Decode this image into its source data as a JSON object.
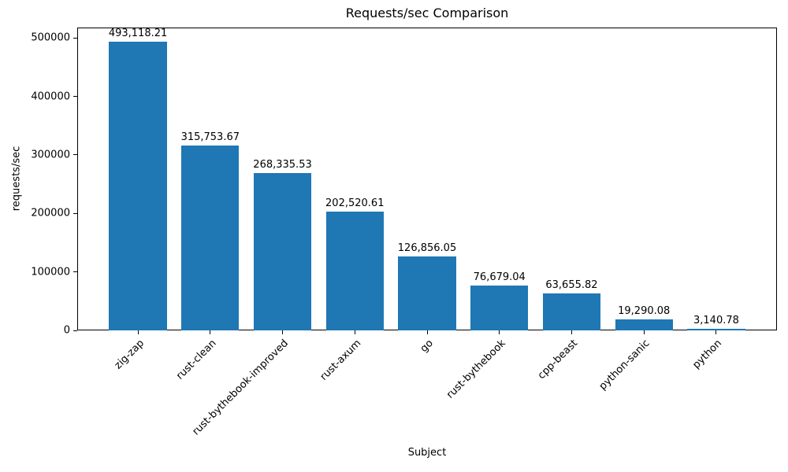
{
  "chart_data": {
    "type": "bar",
    "title": "Requests/sec Comparison",
    "xlabel": "Subject",
    "ylabel": "requests/sec",
    "categories": [
      "zig-zap",
      "rust-clean",
      "rust-bythebook-improved",
      "rust-axum",
      "go",
      "rust-bythebook",
      "cpp-beast",
      "python-sanic",
      "python"
    ],
    "values": [
      493118.21,
      315753.67,
      268335.53,
      202520.61,
      126856.05,
      76679.04,
      63655.82,
      19290.08,
      3140.78
    ],
    "value_labels": [
      "493,118.21",
      "315,753.67",
      "268,335.53",
      "202,520.61",
      "126,856.05",
      "76,679.04",
      "63,655.82",
      "19,290.08",
      "3,140.78"
    ],
    "yticks": [
      0,
      100000,
      200000,
      300000,
      400000,
      500000
    ],
    "ylim": [
      0,
      517774
    ],
    "bar_color": "#1f77b4",
    "bar_width_fraction": 0.8,
    "grid": false,
    "legend_position": "none"
  }
}
